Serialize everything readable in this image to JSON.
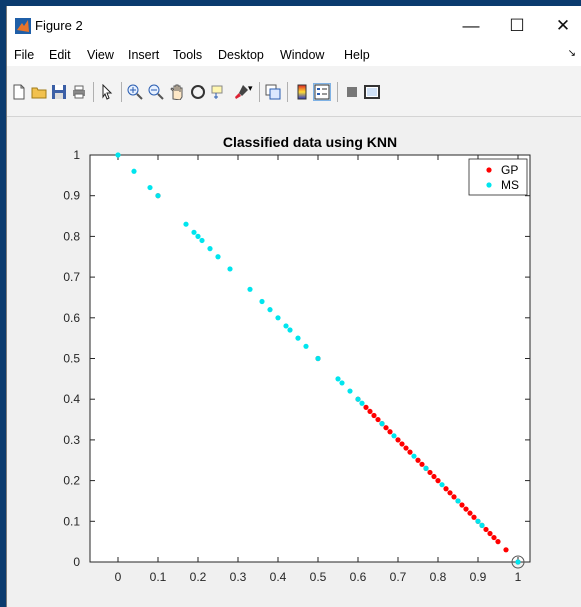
{
  "window": {
    "title": "Figure 2",
    "controls": {
      "minimize": "—",
      "maximize": "☐",
      "close": "✕"
    }
  },
  "menu": [
    "File",
    "Edit",
    "View",
    "Insert",
    "Tools",
    "Desktop",
    "Window",
    "Help"
  ],
  "toolbar": {
    "icons": [
      "new-figure-icon",
      "open-file-icon",
      "save-icon",
      "print-icon",
      "pointer-icon",
      "zoom-in-icon",
      "zoom-out-icon",
      "pan-hand-icon",
      "rotate-3d-icon",
      "data-cursor-icon",
      "brush-icon",
      "brush-dropdown-icon",
      "link-plot-icon",
      "colorbar-icon",
      "legend-icon",
      "hide-plot-tools-icon",
      "show-plot-tools-icon"
    ]
  },
  "colors": {
    "gp": "#ff0000",
    "ms": "#00e5ee",
    "accent": "#0b3b6e"
  },
  "chart_data": {
    "type": "scatter",
    "title": "Classified data using KNN",
    "xlabel": "",
    "ylabel": "",
    "xlim": [
      -0.07,
      1.03
    ],
    "ylim": [
      0,
      1
    ],
    "xticks": [
      "0",
      "0.1",
      "0.2",
      "0.3",
      "0.4",
      "0.5",
      "0.6",
      "0.7",
      "0.8",
      "0.9",
      "1"
    ],
    "yticks": [
      "0",
      "0.1",
      "0.2",
      "0.3",
      "0.4",
      "0.5",
      "0.6",
      "0.7",
      "0.8",
      "0.9",
      "1"
    ],
    "grid": false,
    "legend": "top-right",
    "series": [
      {
        "name": "GP",
        "color": "#ff0000",
        "points": [
          [
            0.1,
            0.9
          ],
          [
            0.5,
            0.5
          ],
          [
            0.6,
            0.4
          ],
          [
            0.62,
            0.38
          ],
          [
            0.63,
            0.37
          ],
          [
            0.64,
            0.36
          ],
          [
            0.65,
            0.35
          ],
          [
            0.66,
            0.34
          ],
          [
            0.67,
            0.33
          ],
          [
            0.68,
            0.32
          ],
          [
            0.7,
            0.3
          ],
          [
            0.71,
            0.29
          ],
          [
            0.72,
            0.28
          ],
          [
            0.73,
            0.27
          ],
          [
            0.75,
            0.25
          ],
          [
            0.76,
            0.24
          ],
          [
            0.77,
            0.23
          ],
          [
            0.78,
            0.22
          ],
          [
            0.79,
            0.21
          ],
          [
            0.8,
            0.2
          ],
          [
            0.82,
            0.18
          ],
          [
            0.83,
            0.17
          ],
          [
            0.84,
            0.16
          ],
          [
            0.85,
            0.15
          ],
          [
            0.86,
            0.14
          ],
          [
            0.87,
            0.13
          ],
          [
            0.88,
            0.12
          ],
          [
            0.89,
            0.11
          ],
          [
            0.9,
            0.1
          ],
          [
            0.91,
            0.09
          ],
          [
            0.92,
            0.08
          ],
          [
            0.93,
            0.07
          ],
          [
            0.94,
            0.06
          ],
          [
            0.95,
            0.05
          ],
          [
            0.97,
            0.03
          ],
          [
            1.0,
            0.0
          ]
        ]
      },
      {
        "name": "MS",
        "color": "#00e5ee",
        "points": [
          [
            0.0,
            1.0
          ],
          [
            0.04,
            0.96
          ],
          [
            0.08,
            0.92
          ],
          [
            0.1,
            0.9
          ],
          [
            0.17,
            0.83
          ],
          [
            0.19,
            0.81
          ],
          [
            0.2,
            0.8
          ],
          [
            0.21,
            0.79
          ],
          [
            0.23,
            0.77
          ],
          [
            0.25,
            0.75
          ],
          [
            0.28,
            0.72
          ],
          [
            0.33,
            0.67
          ],
          [
            0.36,
            0.64
          ],
          [
            0.38,
            0.62
          ],
          [
            0.4,
            0.6
          ],
          [
            0.42,
            0.58
          ],
          [
            0.43,
            0.57
          ],
          [
            0.45,
            0.55
          ],
          [
            0.47,
            0.53
          ],
          [
            0.5,
            0.5
          ],
          [
            0.55,
            0.45
          ],
          [
            0.56,
            0.44
          ],
          [
            0.58,
            0.42
          ],
          [
            0.6,
            0.4
          ],
          [
            0.61,
            0.39
          ],
          [
            0.66,
            0.34
          ],
          [
            0.69,
            0.31
          ],
          [
            0.74,
            0.26
          ],
          [
            0.77,
            0.23
          ],
          [
            0.81,
            0.19
          ],
          [
            0.85,
            0.15
          ],
          [
            0.9,
            0.1
          ],
          [
            0.91,
            0.09
          ],
          [
            1.0,
            0.0
          ]
        ]
      }
    ]
  }
}
